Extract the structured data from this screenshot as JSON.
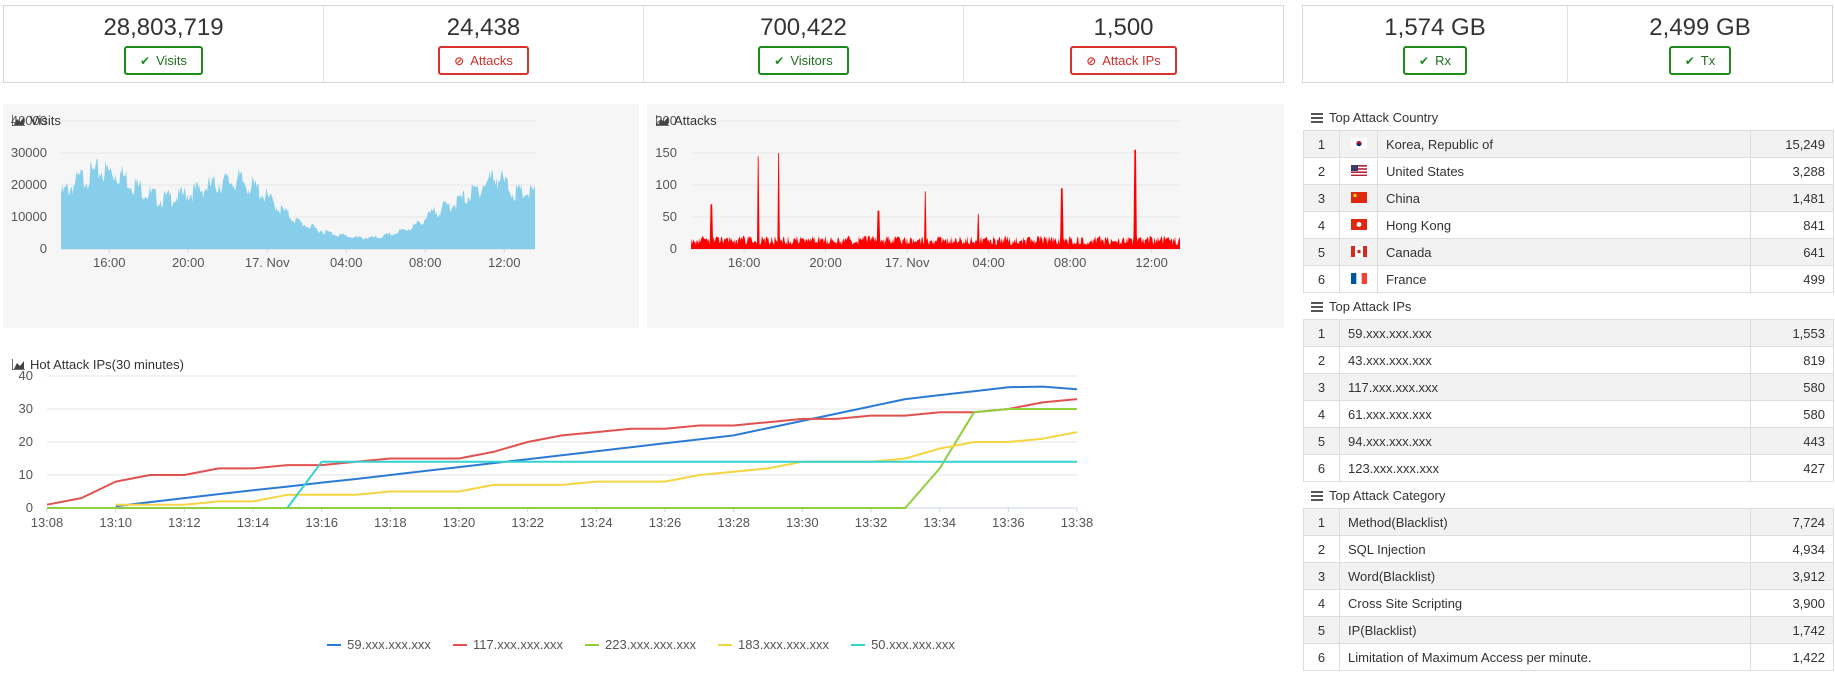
{
  "stats_main": [
    {
      "value": "28,803,719",
      "label": "Visits",
      "status": "ok"
    },
    {
      "value": "24,438",
      "label": "Attacks",
      "status": "blocked"
    },
    {
      "value": "700,422",
      "label": "Visitors",
      "status": "ok"
    },
    {
      "value": "1,500",
      "label": "Attack IPs",
      "status": "blocked"
    }
  ],
  "stats_traffic": [
    {
      "value": "1,574 GB",
      "label": "Rx",
      "status": "ok"
    },
    {
      "value": "2,499 GB",
      "label": "Tx",
      "status": "ok"
    }
  ],
  "icons": {
    "ok": "check-icon",
    "blocked": "ban-icon",
    "chart": "area-chart-icon",
    "list": "list-icon"
  },
  "colors": {
    "ok": "#1e8a1e",
    "blocked": "#d9342b",
    "visits_area": "#87ceeb",
    "attacks_area": "#ff0000"
  },
  "chart_data": [
    {
      "type": "area",
      "title": "Visits",
      "y_ticks": [
        "40000",
        "30000",
        "20000",
        "10000",
        "0"
      ],
      "x_ticks": [
        "16:00",
        "20:00",
        "17. Nov",
        "04:00",
        "08:00",
        "12:00"
      ],
      "ylim": [
        0,
        40000
      ],
      "x_hours": [
        0,
        1,
        2,
        3,
        4,
        5,
        6,
        7,
        8,
        9,
        10,
        11,
        12,
        13,
        14,
        15,
        16,
        17,
        18,
        19,
        20,
        21,
        22,
        23,
        24
      ],
      "values": [
        17000,
        22000,
        24500,
        23500,
        19000,
        15500,
        16500,
        18500,
        20500,
        21500,
        18500,
        13000,
        8500,
        6000,
        4500,
        3500,
        3500,
        5000,
        7500,
        12000,
        14500,
        18000,
        23000,
        17500,
        17500
      ]
    },
    {
      "type": "area",
      "title": "Attacks",
      "y_ticks": [
        "200",
        "150",
        "100",
        "50",
        "0"
      ],
      "x_ticks": [
        "16:00",
        "20:00",
        "17. Nov",
        "04:00",
        "08:00",
        "12:00"
      ],
      "ylim": [
        0,
        200
      ],
      "baseline": 15,
      "spikes": [
        [
          1.0,
          70
        ],
        [
          3.3,
          145
        ],
        [
          4.3,
          150
        ],
        [
          9.2,
          60
        ],
        [
          11.5,
          90
        ],
        [
          14.1,
          55
        ],
        [
          18.2,
          95
        ],
        [
          21.8,
          155
        ]
      ]
    },
    {
      "type": "line",
      "title": "Hot Attack IPs(30 minutes)",
      "y_ticks": [
        "40",
        "30",
        "20",
        "10",
        "0"
      ],
      "ylim": [
        0,
        40
      ],
      "x": [
        "13:08",
        "13:09",
        "13:10",
        "13:11",
        "13:12",
        "13:13",
        "13:14",
        "13:15",
        "13:16",
        "13:17",
        "13:18",
        "13:19",
        "13:20",
        "13:21",
        "13:22",
        "13:23",
        "13:24",
        "13:25",
        "13:26",
        "13:27",
        "13:28",
        "13:29",
        "13:30",
        "13:31",
        "13:32",
        "13:33",
        "13:34",
        "13:35",
        "13:36",
        "13:37",
        "13:38"
      ],
      "x_tick_labels": [
        "13:08",
        "13:10",
        "13:12",
        "13:14",
        "13:16",
        "13:18",
        "13:20",
        "13:22",
        "13:24",
        "13:26",
        "13:28",
        "13:30",
        "13:32",
        "13:34",
        "13:36",
        "13:38"
      ],
      "series": [
        {
          "name": "59.xxx.xxx.xxx",
          "color": "#2b7bd6",
          "values": [
            null,
            null,
            0.5,
            1.8,
            3,
            4.2,
            5.4,
            6.5,
            7.7,
            8.8,
            10,
            11.2,
            12.4,
            13.6,
            14.8,
            16,
            17.2,
            18.4,
            19.6,
            20.8,
            22,
            24.2,
            26.4,
            28.6,
            30.8,
            33,
            34.2,
            35.4,
            36.6,
            36.8,
            36
          ]
        },
        {
          "name": "117.xxx.xxx.xxx",
          "color": "#e0524f",
          "values": [
            1,
            3,
            8,
            10,
            10,
            12,
            12,
            13,
            13,
            14,
            15,
            15,
            15,
            17,
            20,
            22,
            23,
            24,
            24,
            25,
            25,
            26,
            27,
            27,
            28,
            28,
            29,
            29,
            30,
            32,
            33
          ]
        },
        {
          "name": "223.xxx.xxx.xxx",
          "color": "#8fcf3c",
          "values": [
            0,
            0,
            0,
            0,
            0,
            0,
            0,
            0,
            0,
            0,
            0,
            0,
            0,
            0,
            0,
            0,
            0,
            0,
            0,
            0,
            0,
            0,
            0,
            0,
            0,
            0,
            12,
            29,
            30,
            30,
            30
          ]
        },
        {
          "name": "183.xxx.xxx.xxx",
          "color": "#f5d542",
          "values": [
            null,
            null,
            1,
            1,
            1,
            2,
            2,
            4,
            4,
            4,
            5,
            5,
            5,
            7,
            7,
            7,
            8,
            8,
            8,
            10,
            11,
            12,
            14,
            14,
            14,
            15,
            18,
            20,
            20,
            21,
            23
          ]
        },
        {
          "name": "50.xxx.xxx.xxx",
          "color": "#35d2cf",
          "values": [
            null,
            null,
            null,
            null,
            null,
            null,
            null,
            0,
            14,
            14,
            14,
            14,
            14,
            14,
            14,
            14,
            14,
            14,
            14,
            14,
            14,
            14,
            14,
            14,
            14,
            14,
            14,
            14,
            14,
            14,
            14
          ]
        }
      ]
    }
  ],
  "top_attack_country": {
    "title": "Top Attack Country",
    "rows": [
      {
        "rank": "1",
        "flag": "kr",
        "name": "Korea, Republic of",
        "count": "15,249"
      },
      {
        "rank": "2",
        "flag": "us",
        "name": "United States",
        "count": "3,288"
      },
      {
        "rank": "3",
        "flag": "cn",
        "name": "China",
        "count": "1,481"
      },
      {
        "rank": "4",
        "flag": "hk",
        "name": "Hong Kong",
        "count": "841"
      },
      {
        "rank": "5",
        "flag": "ca",
        "name": "Canada",
        "count": "641"
      },
      {
        "rank": "6",
        "flag": "fr",
        "name": "France",
        "count": "499"
      }
    ]
  },
  "top_attack_ips": {
    "title": "Top Attack IPs",
    "rows": [
      {
        "rank": "1",
        "name": "59.xxx.xxx.xxx",
        "count": "1,553"
      },
      {
        "rank": "2",
        "name": "43.xxx.xxx.xxx",
        "count": "819"
      },
      {
        "rank": "3",
        "name": "117.xxx.xxx.xxx",
        "count": "580"
      },
      {
        "rank": "4",
        "name": "61.xxx.xxx.xxx",
        "count": "580"
      },
      {
        "rank": "5",
        "name": "94.xxx.xxx.xxx",
        "count": "443"
      },
      {
        "rank": "6",
        "name": "123.xxx.xxx.xxx",
        "count": "427"
      }
    ]
  },
  "top_attack_category": {
    "title": "Top Attack Category",
    "rows": [
      {
        "rank": "1",
        "name": "Method(Blacklist)",
        "count": "7,724"
      },
      {
        "rank": "2",
        "name": "SQL Injection",
        "count": "4,934"
      },
      {
        "rank": "3",
        "name": "Word(Blacklist)",
        "count": "3,912"
      },
      {
        "rank": "4",
        "name": "Cross Site Scripting",
        "count": "3,900"
      },
      {
        "rank": "5",
        "name": "IP(Blacklist)",
        "count": "1,742"
      },
      {
        "rank": "6",
        "name": "Limitation of Maximum Access per minute.",
        "count": "1,422"
      }
    ]
  }
}
